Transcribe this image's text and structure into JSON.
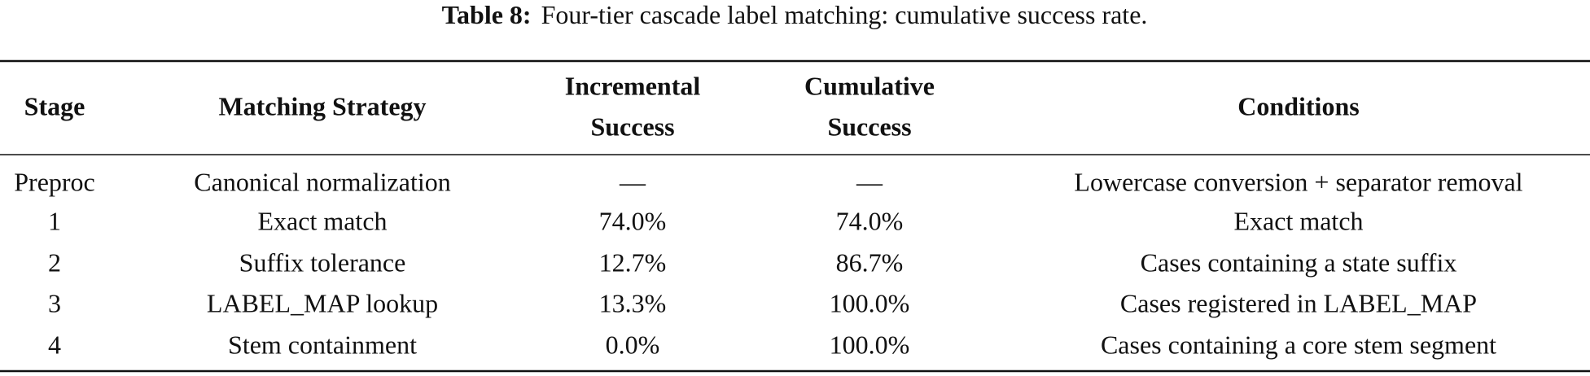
{
  "caption": {
    "label": "Table 8:",
    "text": "Four-tier cascade label matching: cumulative success rate."
  },
  "table": {
    "header": [
      [
        "Stage"
      ],
      [
        "Matching Strategy"
      ],
      [
        "Incremental",
        "Success"
      ],
      [
        "Cumulative",
        "Success"
      ],
      [
        "Conditions"
      ]
    ],
    "rows": [
      [
        "Preproc",
        "Canonical normalization",
        "—",
        "—",
        "Lowercase conversion + separator removal"
      ],
      [
        "1",
        "Exact match",
        "74.0%",
        "74.0%",
        "Exact match"
      ],
      [
        "2",
        "Suffix tolerance",
        "12.7%",
        "86.7%",
        "Cases containing a state suffix"
      ],
      [
        "3",
        "LABEL_MAP lookup",
        "13.3%",
        "100.0%",
        "Cases registered in LABEL_MAP"
      ],
      [
        "4",
        "Stem containment",
        "0.0%",
        "100.0%",
        "Cases containing a core stem segment"
      ]
    ]
  }
}
